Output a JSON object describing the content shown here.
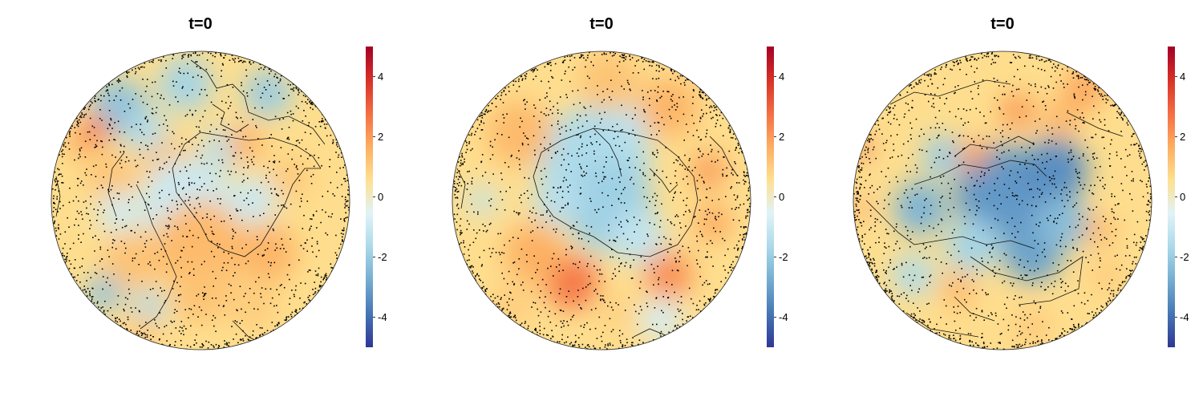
{
  "chart_data": [
    {
      "type": "heatmap",
      "title": "t=0",
      "colorbar": {
        "ticks": [
          4,
          2,
          0,
          -2,
          -4
        ],
        "range": [
          -5,
          5
        ]
      },
      "colormap": [
        "#313695",
        "#4575b4",
        "#74add1",
        "#abd9e9",
        "#e0f3f8",
        "#fee090",
        "#fdae61",
        "#f46d43",
        "#d73027",
        "#a50026"
      ],
      "view": "orthographic globe, Atlantic / Africa / Europe",
      "markers": "black observation points scattered over the disk",
      "blobs": [
        {
          "lon": -0.55,
          "lat": -0.62,
          "value": -2.2,
          "size": 0.2
        },
        {
          "lon": -0.1,
          "lat": -0.78,
          "value": -1.8,
          "size": 0.18
        },
        {
          "lon": 0.45,
          "lat": -0.72,
          "value": -2.0,
          "size": 0.16
        },
        {
          "lon": -0.35,
          "lat": -0.45,
          "value": -1.5,
          "size": 0.14
        },
        {
          "lon": 0.15,
          "lat": -0.35,
          "value": -1.4,
          "size": 0.14
        },
        {
          "lon": -0.7,
          "lat": -0.48,
          "value": 2.5,
          "size": 0.1
        },
        {
          "lon": -0.8,
          "lat": -0.38,
          "value": 2.0,
          "size": 0.08
        },
        {
          "lon": 0.3,
          "lat": -0.38,
          "value": 1.6,
          "size": 0.12
        },
        {
          "lon": -0.2,
          "lat": -0.2,
          "value": 1.2,
          "size": 0.2
        },
        {
          "lon": -0.6,
          "lat": -0.15,
          "value": 1.2,
          "size": 0.16
        },
        {
          "lon": 0.6,
          "lat": -0.15,
          "value": 1.1,
          "size": 0.14
        },
        {
          "lon": -0.1,
          "lat": 0.02,
          "value": -1.0,
          "size": 0.3
        },
        {
          "lon": 0.35,
          "lat": 0.0,
          "value": -1.0,
          "size": 0.16
        },
        {
          "lon": -0.55,
          "lat": 0.08,
          "value": -0.9,
          "size": 0.14
        },
        {
          "lon": 0.0,
          "lat": 0.3,
          "value": 1.4,
          "size": 0.3
        },
        {
          "lon": 0.45,
          "lat": 0.35,
          "value": 1.5,
          "size": 0.2
        },
        {
          "lon": -0.45,
          "lat": 0.4,
          "value": 1.2,
          "size": 0.2
        },
        {
          "lon": -0.65,
          "lat": 0.62,
          "value": -2.2,
          "size": 0.12
        },
        {
          "lon": 0.0,
          "lat": 0.62,
          "value": 1.2,
          "size": 0.2
        },
        {
          "lon": -0.35,
          "lat": 0.72,
          "value": -1.6,
          "size": 0.12
        },
        {
          "lon": 0.35,
          "lat": 0.7,
          "value": 1.0,
          "size": 0.16
        },
        {
          "lon": -0.4,
          "lat": 0.88,
          "value": 1.1,
          "size": 0.12
        }
      ]
    },
    {
      "type": "heatmap",
      "title": "t=0",
      "colorbar": {
        "ticks": [
          4,
          2,
          0,
          -2,
          -4
        ],
        "range": [
          -5,
          5
        ]
      },
      "colormap": [
        "#313695",
        "#4575b4",
        "#74add1",
        "#abd9e9",
        "#e0f3f8",
        "#fee090",
        "#fdae61",
        "#f46d43",
        "#d73027",
        "#a50026"
      ],
      "view": "orthographic globe, Antarctica-centred",
      "markers": "black observation points scattered over the disk",
      "blobs": [
        {
          "lon": -0.05,
          "lat": -0.25,
          "value": -1.6,
          "size": 0.38
        },
        {
          "lon": 0.05,
          "lat": 0.05,
          "value": -1.9,
          "size": 0.3
        },
        {
          "lon": 0.25,
          "lat": 0.25,
          "value": -1.2,
          "size": 0.18
        },
        {
          "lon": -0.3,
          "lat": 0.0,
          "value": -1.4,
          "size": 0.16
        },
        {
          "lon": 0.2,
          "lat": -0.5,
          "value": -1.3,
          "size": 0.14
        },
        {
          "lon": -0.8,
          "lat": 0.0,
          "value": -1.2,
          "size": 0.1
        },
        {
          "lon": -0.2,
          "lat": 0.55,
          "value": 2.6,
          "size": 0.18
        },
        {
          "lon": 0.45,
          "lat": 0.5,
          "value": 2.2,
          "size": 0.16
        },
        {
          "lon": -0.45,
          "lat": 0.35,
          "value": 1.6,
          "size": 0.2
        },
        {
          "lon": 0.72,
          "lat": -0.2,
          "value": 2.0,
          "size": 0.12
        },
        {
          "lon": 0.75,
          "lat": 0.15,
          "value": 1.8,
          "size": 0.12
        },
        {
          "lon": -0.55,
          "lat": -0.45,
          "value": 1.4,
          "size": 0.22
        },
        {
          "lon": 0.45,
          "lat": -0.62,
          "value": 1.5,
          "size": 0.2
        },
        {
          "lon": 0.05,
          "lat": -0.8,
          "value": 1.2,
          "size": 0.2
        },
        {
          "lon": -0.6,
          "lat": 0.7,
          "value": 1.0,
          "size": 0.14
        },
        {
          "lon": 0.4,
          "lat": 0.8,
          "value": -0.8,
          "size": 0.14
        },
        {
          "lon": 0.1,
          "lat": 0.75,
          "value": 0.9,
          "size": 0.12
        }
      ]
    },
    {
      "type": "heatmap",
      "title": "t=0",
      "colorbar": {
        "ticks": [
          4,
          2,
          0,
          -2,
          -4
        ],
        "range": [
          -5,
          5
        ]
      },
      "colormap": [
        "#313695",
        "#4575b4",
        "#74add1",
        "#abd9e9",
        "#e0f3f8",
        "#fee090",
        "#fdae61",
        "#f46d43",
        "#d73027",
        "#a50026"
      ],
      "view": "orthographic globe, Arctic / Eurasia",
      "markers": "black observation points scattered over the disk",
      "blobs": [
        {
          "lon": 0.0,
          "lat": -0.05,
          "value": -3.2,
          "size": 0.32
        },
        {
          "lon": 0.35,
          "lat": -0.2,
          "value": -3.4,
          "size": 0.22
        },
        {
          "lon": 0.2,
          "lat": 0.35,
          "value": -3.0,
          "size": 0.2
        },
        {
          "lon": -0.55,
          "lat": 0.05,
          "value": -2.6,
          "size": 0.18
        },
        {
          "lon": 0.4,
          "lat": 0.15,
          "value": -2.4,
          "size": 0.18
        },
        {
          "lon": -0.4,
          "lat": -0.3,
          "value": -2.0,
          "size": 0.14
        },
        {
          "lon": -0.2,
          "lat": 0.3,
          "value": -1.8,
          "size": 0.18
        },
        {
          "lon": -0.2,
          "lat": -0.3,
          "value": 2.0,
          "size": 0.1
        },
        {
          "lon": 0.1,
          "lat": -0.6,
          "value": 2.0,
          "size": 0.12
        },
        {
          "lon": 0.4,
          "lat": -0.55,
          "value": 1.5,
          "size": 0.12
        },
        {
          "lon": -0.95,
          "lat": -0.35,
          "value": 3.2,
          "size": 0.06
        },
        {
          "lon": -0.95,
          "lat": 0.05,
          "value": 2.6,
          "size": 0.05
        },
        {
          "lon": 0.55,
          "lat": -0.75,
          "value": 1.8,
          "size": 0.14
        },
        {
          "lon": 0.65,
          "lat": 0.2,
          "value": 1.5,
          "size": 0.1
        },
        {
          "lon": -0.3,
          "lat": 0.6,
          "value": 1.4,
          "size": 0.12
        },
        {
          "lon": 0.2,
          "lat": 0.85,
          "value": 1.1,
          "size": 0.12
        },
        {
          "lon": -0.6,
          "lat": 0.5,
          "value": -1.6,
          "size": 0.14
        },
        {
          "lon": 0.7,
          "lat": 0.5,
          "value": 1.0,
          "size": 0.12
        }
      ]
    }
  ]
}
